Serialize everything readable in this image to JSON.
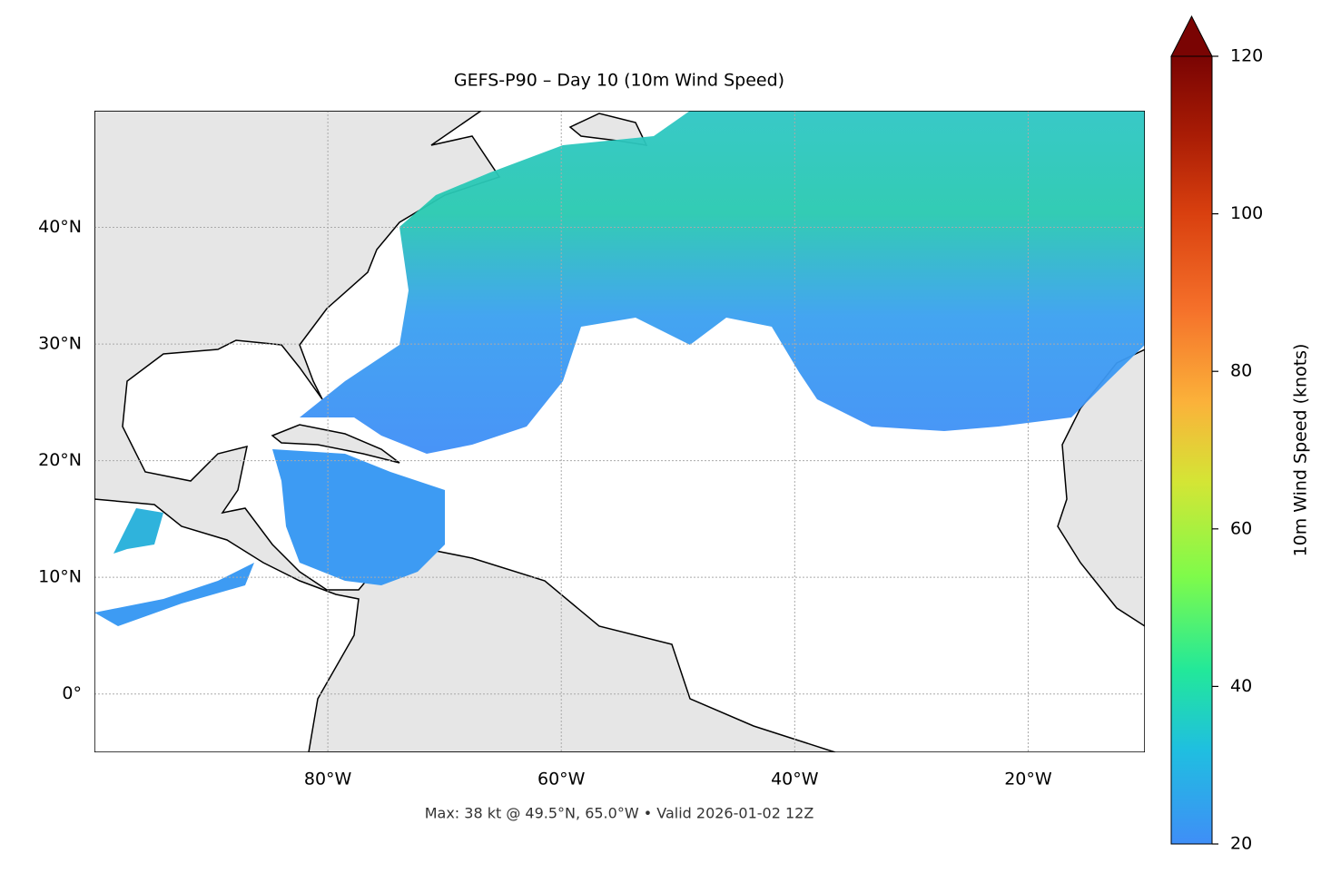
{
  "title": "GEFS-P90 – Day 10 (10m Wind Speed)",
  "footer": "Max: 38 kt @ 49.5°N, 65.0°W • Valid 2026-01-02 12Z",
  "map": {
    "lon_range": [
      -100,
      -10
    ],
    "lat_range": [
      -5,
      50
    ],
    "lon_ticks": [
      {
        "value": -80,
        "label": "80°W"
      },
      {
        "value": -60,
        "label": "60°W"
      },
      {
        "value": -40,
        "label": "40°W"
      },
      {
        "value": -20,
        "label": "20°W"
      }
    ],
    "lat_ticks": [
      {
        "value": 0,
        "label": "0°"
      },
      {
        "value": 10,
        "label": "10°N"
      },
      {
        "value": 20,
        "label": "20°N"
      },
      {
        "value": 30,
        "label": "30°N"
      },
      {
        "value": 40,
        "label": "40°N"
      }
    ]
  },
  "colorbar": {
    "label": "10m Wind Speed (knots)",
    "range": [
      20,
      120
    ],
    "ticks": [
      20,
      40,
      60,
      80,
      100,
      120
    ]
  }
}
